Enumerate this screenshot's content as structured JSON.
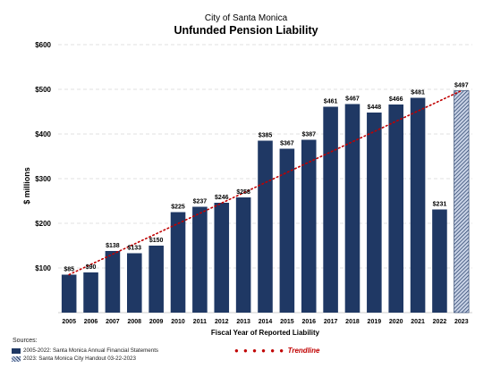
{
  "title": "City of Santa Monica",
  "subtitle": "Unfunded Pension Liability",
  "chart_data": {
    "type": "bar",
    "xlabel": "Fiscal Year of Reported Liability",
    "ylabel": "$ millions",
    "ylim": [
      0,
      600
    ],
    "yticks": [
      100,
      200,
      300,
      400,
      500,
      600
    ],
    "ytick_labels": [
      "$100",
      "$200",
      "$300",
      "$400",
      "$500",
      "$600"
    ],
    "grid": true,
    "categories": [
      "2005",
      "2006",
      "2007",
      "2008",
      "2009",
      "2010",
      "2011",
      "2012",
      "2013",
      "2014",
      "2015",
      "2016",
      "2017",
      "2018",
      "2019",
      "2020",
      "2021",
      "2022",
      "2023"
    ],
    "values": [
      85,
      90,
      138,
      133,
      150,
      225,
      237,
      246,
      258,
      385,
      367,
      387,
      461,
      467,
      448,
      466,
      481,
      231,
      497
    ],
    "data_labels": [
      "$85",
      "$90",
      "$138",
      "$133",
      "$150",
      "$225",
      "$237",
      "$246",
      "$258",
      "$385",
      "$367",
      "$387",
      "$461",
      "$467",
      "$448",
      "$466",
      "$481",
      "$231",
      "$497"
    ],
    "projected_category": "2023",
    "trendline": {
      "label": "Trendline",
      "from": 85,
      "to": 497
    },
    "colors": {
      "bar": "#1f3864",
      "hatch_light": "#c9d3e6",
      "trendline": "#c00000",
      "grid": "#d9d9d9"
    }
  },
  "legend": {
    "heading": "Sources:",
    "actual": "2005-2022: Santa Monica Annual Financial Statements",
    "projected": "2023: Santa Monica City Handout 03-22-2023",
    "trend_dots": "● ● ● ● ● ●",
    "trend_label": "Trendline"
  }
}
